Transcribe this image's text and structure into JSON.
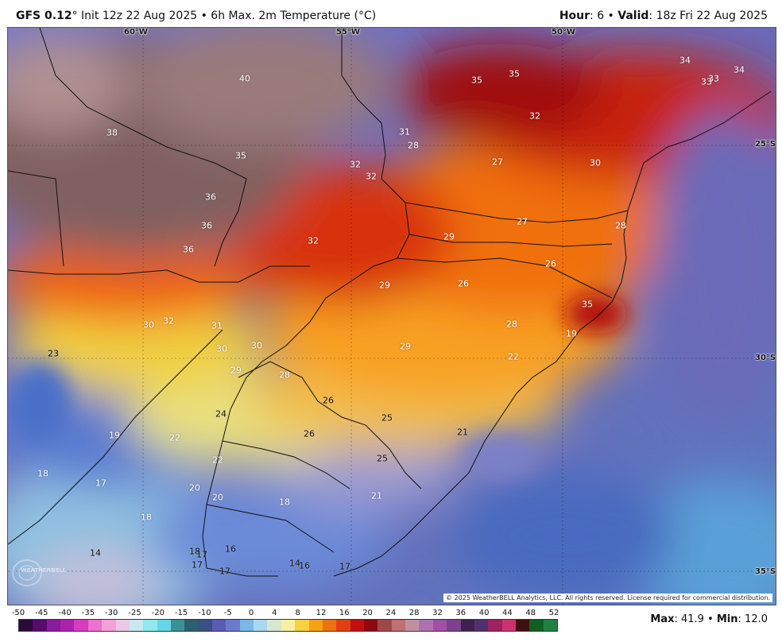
{
  "header": {
    "model": "GFS 0.12",
    "run_text": "° Init 12z 22 Aug 2025 • 6h Max. 2m Temperature (°C)",
    "hour_label": "Hour",
    "hour_value": ": 6 • ",
    "valid_label": "Valid",
    "valid_value": ": 18z Fri 22 Aug 2025"
  },
  "map": {
    "lon_labels": [
      "60°W",
      "55°W",
      "50°W"
    ],
    "lat_labels": [
      "25°S",
      "30°S",
      "35°S"
    ],
    "copyright": "© 2025 WeatherBELL Analytics, LLC. All rights reserved. License required for commercial distribution.",
    "logo_text": "WEATHERBELL",
    "values": [
      "40",
      "38",
      "35",
      "35",
      "35",
      "34",
      "33",
      "33",
      "34",
      "31",
      "28",
      "32",
      "32",
      "27",
      "30",
      "36",
      "36",
      "36",
      "32",
      "32",
      "29",
      "27",
      "29",
      "26",
      "26",
      "35",
      "28",
      "28",
      "30",
      "32",
      "31",
      "30",
      "30",
      "29",
      "28",
      "29",
      "22",
      "19",
      "23",
      "26",
      "25",
      "26",
      "24",
      "21",
      "19",
      "22",
      "22",
      "25",
      "18",
      "17",
      "20",
      "20",
      "18",
      "21",
      "18",
      "14",
      "18",
      "17",
      "16",
      "17",
      "17",
      "14",
      "16",
      "17"
    ]
  },
  "legend": {
    "ticks": [
      "-50",
      "-45",
      "-40",
      "-35",
      "-30",
      "-25",
      "-20",
      "-15",
      "-10",
      "-5",
      "0",
      "4",
      "8",
      "12",
      "16",
      "20",
      "24",
      "28",
      "32",
      "36",
      "40",
      "44",
      "48",
      "52"
    ],
    "colors": [
      "#2a0a3a",
      "#5a0a6a",
      "#8a1aa0",
      "#b020b0",
      "#d83ac0",
      "#ee70d0",
      "#f4a0d8",
      "#e8c8e8",
      "#c8e8f0",
      "#90e8f0",
      "#60d8e8",
      "#3a9098",
      "#2a6070",
      "#3a5088",
      "#5a5ab8",
      "#6a7ad0",
      "#7ab8e8",
      "#a8d8f0",
      "#d8e8d0",
      "#f8f0a0",
      "#f8d040",
      "#f8a018",
      "#f07010",
      "#e04010",
      "#c01010",
      "#900810",
      "#a04848",
      "#c07070",
      "#c090a0",
      "#b070b0",
      "#a050a8",
      "#804090",
      "#402050",
      "#503070",
      "#a02060",
      "#d03070",
      "#401010",
      "#106020",
      "#208040"
    ],
    "max_label": "Max",
    "max_value": ": 41.9 • ",
    "min_label": "Min",
    "min_value": ": 12.0"
  }
}
